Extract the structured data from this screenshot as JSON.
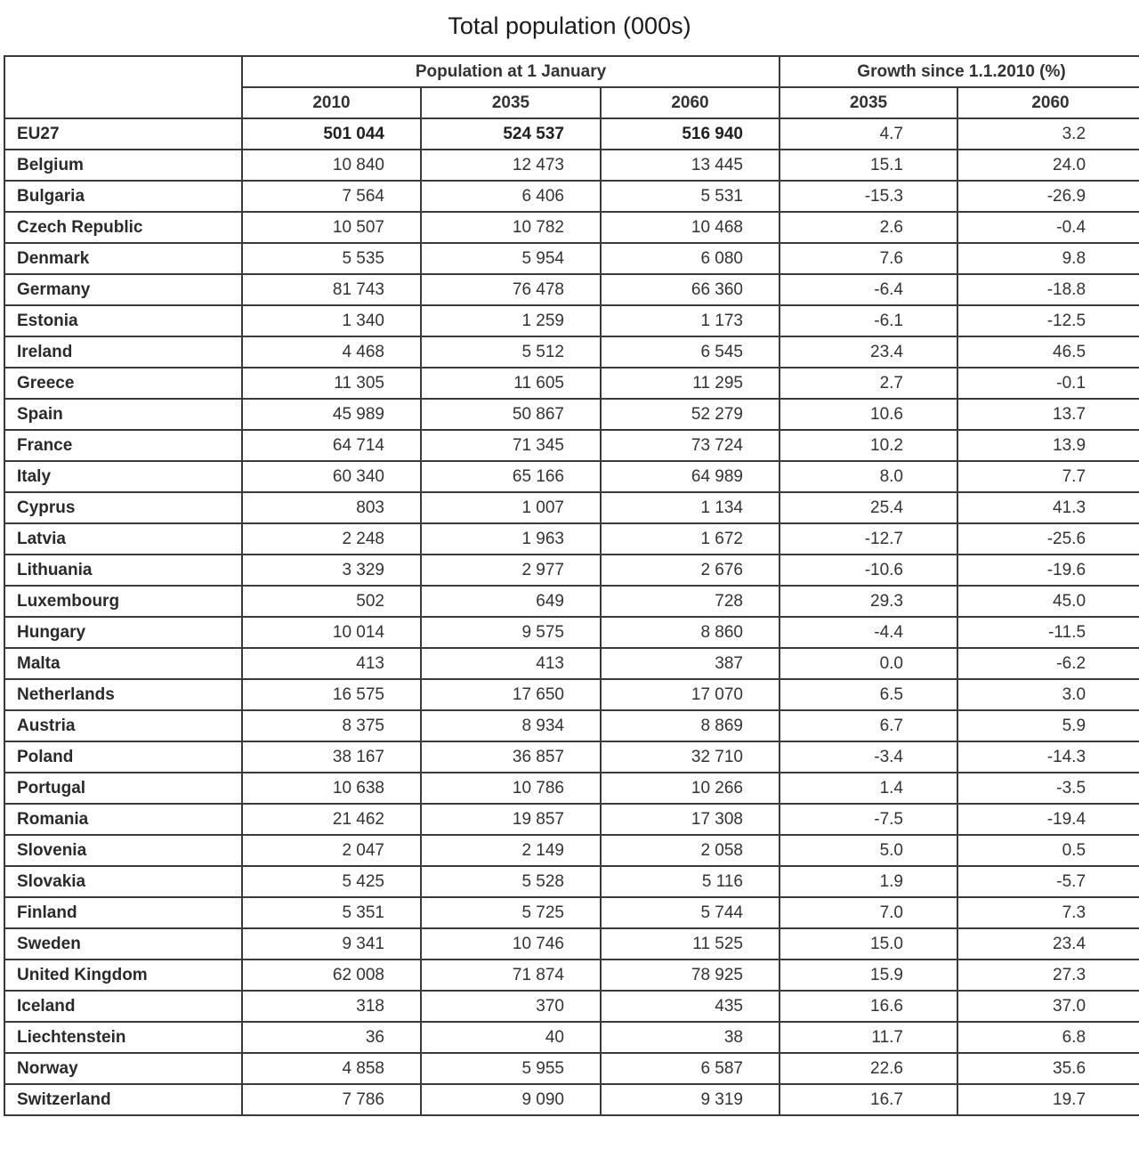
{
  "title": "Total population (000s)",
  "header": {
    "group_population": "Population at 1 January",
    "group_growth": "Growth since 1.1.2010 (%)",
    "years_population": [
      "2010",
      "2035",
      "2060"
    ],
    "years_growth": [
      "2035",
      "2060"
    ]
  },
  "rows": [
    {
      "country": "EU27",
      "p2010": "501 044",
      "p2035": "524 537",
      "p2060": "516 940",
      "g2035": "4.7",
      "g2060": "3.2"
    },
    {
      "country": "Belgium",
      "p2010": "10 840",
      "p2035": "12 473",
      "p2060": "13 445",
      "g2035": "15.1",
      "g2060": "24.0"
    },
    {
      "country": "Bulgaria",
      "p2010": "7 564",
      "p2035": "6 406",
      "p2060": "5 531",
      "g2035": "-15.3",
      "g2060": "-26.9"
    },
    {
      "country": "Czech Republic",
      "p2010": "10 507",
      "p2035": "10 782",
      "p2060": "10 468",
      "g2035": "2.6",
      "g2060": "-0.4"
    },
    {
      "country": "Denmark",
      "p2010": "5 535",
      "p2035": "5 954",
      "p2060": "6 080",
      "g2035": "7.6",
      "g2060": "9.8"
    },
    {
      "country": "Germany",
      "p2010": "81 743",
      "p2035": "76 478",
      "p2060": "66 360",
      "g2035": "-6.4",
      "g2060": "-18.8"
    },
    {
      "country": "Estonia",
      "p2010": "1 340",
      "p2035": "1 259",
      "p2060": "1 173",
      "g2035": "-6.1",
      "g2060": "-12.5"
    },
    {
      "country": "Ireland",
      "p2010": "4 468",
      "p2035": "5 512",
      "p2060": "6 545",
      "g2035": "23.4",
      "g2060": "46.5"
    },
    {
      "country": "Greece",
      "p2010": "11 305",
      "p2035": "11 605",
      "p2060": "11 295",
      "g2035": "2.7",
      "g2060": "-0.1"
    },
    {
      "country": "Spain",
      "p2010": "45 989",
      "p2035": "50 867",
      "p2060": "52 279",
      "g2035": "10.6",
      "g2060": "13.7"
    },
    {
      "country": "France",
      "p2010": "64 714",
      "p2035": "71 345",
      "p2060": "73 724",
      "g2035": "10.2",
      "g2060": "13.9"
    },
    {
      "country": "Italy",
      "p2010": "60 340",
      "p2035": "65 166",
      "p2060": "64 989",
      "g2035": "8.0",
      "g2060": "7.7"
    },
    {
      "country": "Cyprus",
      "p2010": "803",
      "p2035": "1 007",
      "p2060": "1 134",
      "g2035": "25.4",
      "g2060": "41.3"
    },
    {
      "country": "Latvia",
      "p2010": "2 248",
      "p2035": "1 963",
      "p2060": "1 672",
      "g2035": "-12.7",
      "g2060": "-25.6"
    },
    {
      "country": "Lithuania",
      "p2010": "3 329",
      "p2035": "2 977",
      "p2060": "2 676",
      "g2035": "-10.6",
      "g2060": "-19.6"
    },
    {
      "country": "Luxembourg",
      "p2010": "502",
      "p2035": "649",
      "p2060": "728",
      "g2035": "29.3",
      "g2060": "45.0"
    },
    {
      "country": "Hungary",
      "p2010": "10 014",
      "p2035": "9 575",
      "p2060": "8 860",
      "g2035": "-4.4",
      "g2060": "-11.5"
    },
    {
      "country": "Malta",
      "p2010": "413",
      "p2035": "413",
      "p2060": "387",
      "g2035": "0.0",
      "g2060": "-6.2"
    },
    {
      "country": "Netherlands",
      "p2010": "16 575",
      "p2035": "17 650",
      "p2060": "17 070",
      "g2035": "6.5",
      "g2060": "3.0"
    },
    {
      "country": "Austria",
      "p2010": "8 375",
      "p2035": "8 934",
      "p2060": "8 869",
      "g2035": "6.7",
      "g2060": "5.9"
    },
    {
      "country": "Poland",
      "p2010": "38 167",
      "p2035": "36 857",
      "p2060": "32 710",
      "g2035": "-3.4",
      "g2060": "-14.3"
    },
    {
      "country": "Portugal",
      "p2010": "10 638",
      "p2035": "10 786",
      "p2060": "10 266",
      "g2035": "1.4",
      "g2060": "-3.5"
    },
    {
      "country": "Romania",
      "p2010": "21 462",
      "p2035": "19 857",
      "p2060": "17 308",
      "g2035": "-7.5",
      "g2060": "-19.4"
    },
    {
      "country": "Slovenia",
      "p2010": "2 047",
      "p2035": "2 149",
      "p2060": "2 058",
      "g2035": "5.0",
      "g2060": "0.5"
    },
    {
      "country": "Slovakia",
      "p2010": "5 425",
      "p2035": "5 528",
      "p2060": "5 116",
      "g2035": "1.9",
      "g2060": "-5.7"
    },
    {
      "country": "Finland",
      "p2010": "5 351",
      "p2035": "5 725",
      "p2060": "5 744",
      "g2035": "7.0",
      "g2060": "7.3"
    },
    {
      "country": "Sweden",
      "p2010": "9 341",
      "p2035": "10 746",
      "p2060": "11 525",
      "g2035": "15.0",
      "g2060": "23.4"
    },
    {
      "country": "United Kingdom",
      "p2010": "62 008",
      "p2035": "71 874",
      "p2060": "78 925",
      "g2035": "15.9",
      "g2060": "27.3"
    },
    {
      "country": "Iceland",
      "p2010": "318",
      "p2035": "370",
      "p2060": "435",
      "g2035": "16.6",
      "g2060": "37.0"
    },
    {
      "country": "Liechtenstein",
      "p2010": "36",
      "p2035": "40",
      "p2060": "38",
      "g2035": "11.7",
      "g2060": "6.8"
    },
    {
      "country": "Norway",
      "p2010": "4 858",
      "p2035": "5 955",
      "p2060": "6 587",
      "g2035": "22.6",
      "g2060": "35.6"
    },
    {
      "country": "Switzerland",
      "p2010": "7 786",
      "p2035": "9 090",
      "p2060": "9 319",
      "g2035": "16.7",
      "g2060": "19.7"
    }
  ]
}
